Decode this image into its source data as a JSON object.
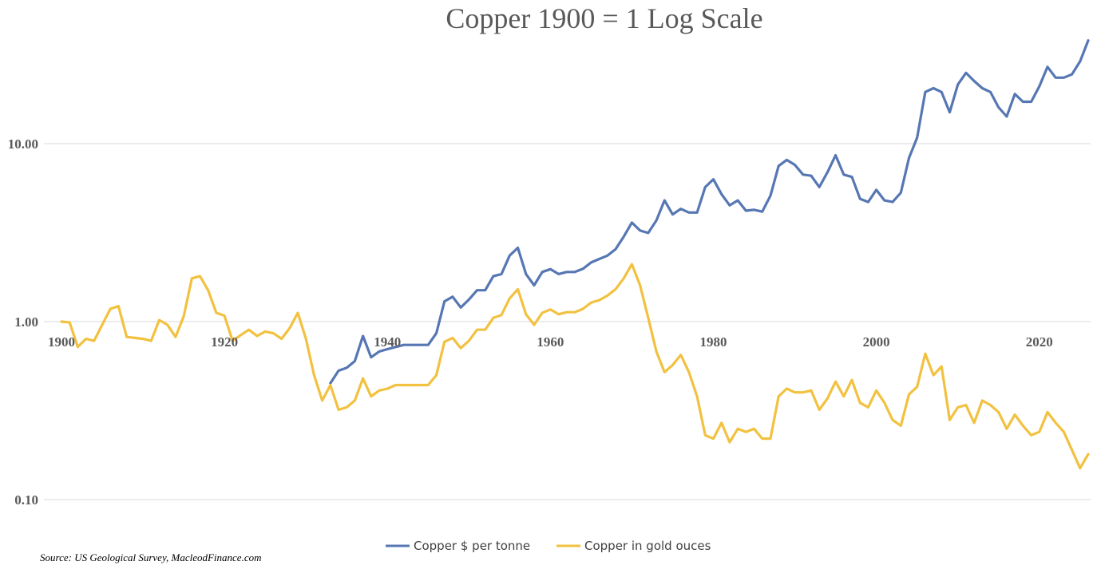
{
  "chart_data": {
    "type": "line",
    "title": "Copper 1900 = 1 Log Scale",
    "y_scale": "log",
    "ylim": [
      0.1,
      40
    ],
    "xlim": [
      1900,
      2025
    ],
    "y_ticks": [
      {
        "value": 10,
        "label": "10.00"
      },
      {
        "value": 1,
        "label": "1.00"
      },
      {
        "value": 0.1,
        "label": "0.10"
      }
    ],
    "x_ticks": [
      {
        "value": 1900,
        "label": "1900"
      },
      {
        "value": 1920,
        "label": "1920"
      },
      {
        "value": 1940,
        "label": "1940"
      },
      {
        "value": 1960,
        "label": "1960"
      },
      {
        "value": 1980,
        "label": "1980"
      },
      {
        "value": 2000,
        "label": "2000"
      },
      {
        "value": 2020,
        "label": "2020"
      }
    ],
    "gridlines": true,
    "legend_position": "bottom",
    "series": [
      {
        "name": "Copper $ per tonne",
        "color": "#5677b3",
        "points": [
          [
            1933,
            0.45
          ],
          [
            1934,
            0.53
          ],
          [
            1935,
            0.55
          ],
          [
            1936,
            0.6
          ],
          [
            1937,
            0.83
          ],
          [
            1938,
            0.63
          ],
          [
            1939,
            0.68
          ],
          [
            1940,
            0.7
          ],
          [
            1941,
            0.72
          ],
          [
            1942,
            0.74
          ],
          [
            1943,
            0.74
          ],
          [
            1944,
            0.74
          ],
          [
            1945,
            0.74
          ],
          [
            1946,
            0.86
          ],
          [
            1947,
            1.3
          ],
          [
            1948,
            1.38
          ],
          [
            1949,
            1.2
          ],
          [
            1950,
            1.33
          ],
          [
            1951,
            1.5
          ],
          [
            1952,
            1.5
          ],
          [
            1953,
            1.8
          ],
          [
            1954,
            1.85
          ],
          [
            1955,
            2.35
          ],
          [
            1956,
            2.6
          ],
          [
            1957,
            1.85
          ],
          [
            1958,
            1.6
          ],
          [
            1959,
            1.9
          ],
          [
            1960,
            1.97
          ],
          [
            1961,
            1.85
          ],
          [
            1962,
            1.9
          ],
          [
            1963,
            1.9
          ],
          [
            1964,
            1.98
          ],
          [
            1965,
            2.15
          ],
          [
            1966,
            2.25
          ],
          [
            1967,
            2.35
          ],
          [
            1968,
            2.55
          ],
          [
            1969,
            3.0
          ],
          [
            1970,
            3.6
          ],
          [
            1971,
            3.25
          ],
          [
            1972,
            3.15
          ],
          [
            1973,
            3.7
          ],
          [
            1974,
            4.8
          ],
          [
            1975,
            4.0
          ],
          [
            1976,
            4.3
          ],
          [
            1977,
            4.1
          ],
          [
            1978,
            4.1
          ],
          [
            1979,
            5.7
          ],
          [
            1980,
            6.3
          ],
          [
            1981,
            5.2
          ],
          [
            1982,
            4.5
          ],
          [
            1983,
            4.8
          ],
          [
            1984,
            4.2
          ],
          [
            1985,
            4.25
          ],
          [
            1986,
            4.15
          ],
          [
            1987,
            5.1
          ],
          [
            1988,
            7.5
          ],
          [
            1989,
            8.1
          ],
          [
            1990,
            7.6
          ],
          [
            1991,
            6.7
          ],
          [
            1992,
            6.6
          ],
          [
            1993,
            5.7
          ],
          [
            1994,
            6.9
          ],
          [
            1995,
            8.6
          ],
          [
            1996,
            6.7
          ],
          [
            1997,
            6.5
          ],
          [
            1998,
            4.9
          ],
          [
            1999,
            4.7
          ],
          [
            2000,
            5.5
          ],
          [
            2001,
            4.8
          ],
          [
            2002,
            4.7
          ],
          [
            2003,
            5.3
          ],
          [
            2004,
            8.3
          ],
          [
            2005,
            10.8
          ],
          [
            2006,
            19.5
          ],
          [
            2007,
            20.5
          ],
          [
            2008,
            19.5
          ],
          [
            2009,
            15.0
          ],
          [
            2010,
            21.5
          ],
          [
            2011,
            25.0
          ],
          [
            2012,
            22.5
          ],
          [
            2013,
            20.5
          ],
          [
            2014,
            19.5
          ],
          [
            2015,
            16.0
          ],
          [
            2016,
            14.2
          ],
          [
            2017,
            19.0
          ],
          [
            2018,
            17.2
          ],
          [
            2019,
            17.2
          ],
          [
            2020,
            21.0
          ],
          [
            2021,
            27.0
          ],
          [
            2022,
            23.5
          ],
          [
            2023,
            23.5
          ],
          [
            2024,
            24.5
          ],
          [
            2025,
            29.0
          ],
          [
            2026,
            38.0
          ]
        ]
      },
      {
        "name": "Copper in gold ouces",
        "color": "#f2c140",
        "points": [
          [
            1900,
            1.0
          ],
          [
            1901,
            0.99
          ],
          [
            1902,
            0.72
          ],
          [
            1903,
            0.8
          ],
          [
            1904,
            0.78
          ],
          [
            1905,
            0.96
          ],
          [
            1906,
            1.18
          ],
          [
            1907,
            1.22
          ],
          [
            1908,
            0.82
          ],
          [
            1909,
            0.81
          ],
          [
            1910,
            0.8
          ],
          [
            1911,
            0.78
          ],
          [
            1912,
            1.02
          ],
          [
            1913,
            0.96
          ],
          [
            1914,
            0.82
          ],
          [
            1915,
            1.07
          ],
          [
            1916,
            1.75
          ],
          [
            1917,
            1.8
          ],
          [
            1918,
            1.5
          ],
          [
            1919,
            1.12
          ],
          [
            1920,
            1.08
          ],
          [
            1921,
            0.78
          ],
          [
            1922,
            0.84
          ],
          [
            1923,
            0.9
          ],
          [
            1924,
            0.83
          ],
          [
            1925,
            0.88
          ],
          [
            1926,
            0.86
          ],
          [
            1927,
            0.8
          ],
          [
            1928,
            0.92
          ],
          [
            1929,
            1.12
          ],
          [
            1930,
            0.8
          ],
          [
            1931,
            0.5
          ],
          [
            1932,
            0.36
          ],
          [
            1933,
            0.44
          ],
          [
            1934,
            0.32
          ],
          [
            1935,
            0.33
          ],
          [
            1936,
            0.36
          ],
          [
            1937,
            0.48
          ],
          [
            1938,
            0.38
          ],
          [
            1939,
            0.41
          ],
          [
            1940,
            0.42
          ],
          [
            1941,
            0.44
          ],
          [
            1942,
            0.44
          ],
          [
            1943,
            0.44
          ],
          [
            1944,
            0.44
          ],
          [
            1945,
            0.44
          ],
          [
            1946,
            0.5
          ],
          [
            1947,
            0.77
          ],
          [
            1948,
            0.81
          ],
          [
            1949,
            0.71
          ],
          [
            1950,
            0.78
          ],
          [
            1951,
            0.9
          ],
          [
            1952,
            0.9
          ],
          [
            1953,
            1.05
          ],
          [
            1954,
            1.09
          ],
          [
            1955,
            1.35
          ],
          [
            1956,
            1.52
          ],
          [
            1957,
            1.1
          ],
          [
            1958,
            0.96
          ],
          [
            1959,
            1.12
          ],
          [
            1960,
            1.17
          ],
          [
            1961,
            1.1
          ],
          [
            1962,
            1.13
          ],
          [
            1963,
            1.13
          ],
          [
            1964,
            1.18
          ],
          [
            1965,
            1.28
          ],
          [
            1966,
            1.32
          ],
          [
            1967,
            1.4
          ],
          [
            1968,
            1.52
          ],
          [
            1969,
            1.75
          ],
          [
            1970,
            2.1
          ],
          [
            1971,
            1.6
          ],
          [
            1972,
            1.05
          ],
          [
            1973,
            0.68
          ],
          [
            1974,
            0.52
          ],
          [
            1975,
            0.57
          ],
          [
            1976,
            0.65
          ],
          [
            1977,
            0.52
          ],
          [
            1978,
            0.38
          ],
          [
            1979,
            0.23
          ],
          [
            1980,
            0.22
          ],
          [
            1981,
            0.27
          ],
          [
            1982,
            0.21
          ],
          [
            1983,
            0.25
          ],
          [
            1984,
            0.24
          ],
          [
            1985,
            0.25
          ],
          [
            1986,
            0.22
          ],
          [
            1987,
            0.22
          ],
          [
            1988,
            0.38
          ],
          [
            1989,
            0.42
          ],
          [
            1990,
            0.4
          ],
          [
            1991,
            0.4
          ],
          [
            1992,
            0.41
          ],
          [
            1993,
            0.32
          ],
          [
            1994,
            0.37
          ],
          [
            1995,
            0.46
          ],
          [
            1996,
            0.38
          ],
          [
            1997,
            0.47
          ],
          [
            1998,
            0.35
          ],
          [
            1999,
            0.33
          ],
          [
            2000,
            0.41
          ],
          [
            2001,
            0.35
          ],
          [
            2002,
            0.28
          ],
          [
            2003,
            0.26
          ],
          [
            2004,
            0.39
          ],
          [
            2005,
            0.43
          ],
          [
            2006,
            0.66
          ],
          [
            2007,
            0.5
          ],
          [
            2008,
            0.56
          ],
          [
            2009,
            0.28
          ],
          [
            2010,
            0.33
          ],
          [
            2011,
            0.34
          ],
          [
            2012,
            0.27
          ],
          [
            2013,
            0.36
          ],
          [
            2014,
            0.34
          ],
          [
            2015,
            0.31
          ],
          [
            2016,
            0.25
          ],
          [
            2017,
            0.3
          ],
          [
            2018,
            0.26
          ],
          [
            2019,
            0.23
          ],
          [
            2020,
            0.24
          ],
          [
            2021,
            0.31
          ],
          [
            2022,
            0.27
          ],
          [
            2023,
            0.24
          ],
          [
            2024,
            0.19
          ],
          [
            2025,
            0.15
          ],
          [
            2026,
            0.18
          ]
        ]
      }
    ]
  },
  "source": "Source: US Geological Survey, MacleodFinance.com"
}
